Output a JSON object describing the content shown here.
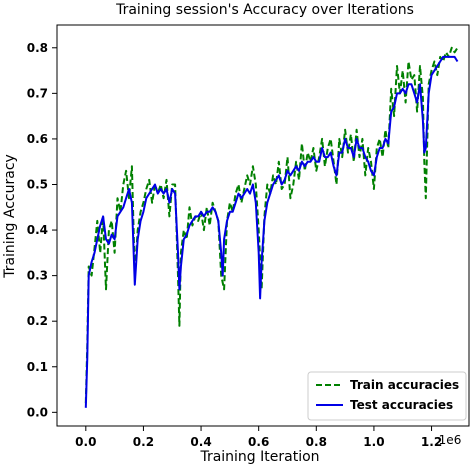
{
  "chart_data": {
    "type": "line",
    "title": "Training session's Accuracy over Iterations",
    "xlabel": "Training Iteration",
    "ylabel": "Training Accuracy",
    "x_offset_label": "1e6",
    "xlim": [
      -0.1,
      1.33
    ],
    "ylim": [
      -0.03,
      0.85
    ],
    "x_ticks": [
      0.0,
      0.2,
      0.4,
      0.6,
      0.8,
      1.0,
      1.2
    ],
    "x_tick_labels": [
      "0.0",
      "0.2",
      "0.4",
      "0.6",
      "0.8",
      "1.0",
      "1.2"
    ],
    "y_ticks": [
      0.0,
      0.1,
      0.2,
      0.3,
      0.4,
      0.5,
      0.6,
      0.7,
      0.8
    ],
    "y_tick_labels": [
      "0.0",
      "0.1",
      "0.2",
      "0.3",
      "0.4",
      "0.5",
      "0.6",
      "0.7",
      "0.8"
    ],
    "grid": false,
    "legend_position": "lower-right",
    "series": [
      {
        "name": "Train accuracies",
        "color": "#008000",
        "style": "dashed",
        "points": [
          [
            0.0,
            0.02
          ],
          [
            0.005,
            0.15
          ],
          [
            0.01,
            0.32
          ],
          [
            0.02,
            0.3
          ],
          [
            0.03,
            0.36
          ],
          [
            0.04,
            0.42
          ],
          [
            0.05,
            0.35
          ],
          [
            0.06,
            0.43
          ],
          [
            0.07,
            0.27
          ],
          [
            0.08,
            0.4
          ],
          [
            0.09,
            0.42
          ],
          [
            0.1,
            0.35
          ],
          [
            0.11,
            0.47
          ],
          [
            0.12,
            0.44
          ],
          [
            0.13,
            0.5
          ],
          [
            0.14,
            0.53
          ],
          [
            0.15,
            0.47
          ],
          [
            0.16,
            0.54
          ],
          [
            0.17,
            0.3
          ],
          [
            0.18,
            0.4
          ],
          [
            0.19,
            0.44
          ],
          [
            0.2,
            0.46
          ],
          [
            0.21,
            0.49
          ],
          [
            0.22,
            0.51
          ],
          [
            0.23,
            0.46
          ],
          [
            0.24,
            0.5
          ],
          [
            0.25,
            0.48
          ],
          [
            0.26,
            0.5
          ],
          [
            0.27,
            0.47
          ],
          [
            0.28,
            0.51
          ],
          [
            0.29,
            0.43
          ],
          [
            0.3,
            0.5
          ],
          [
            0.31,
            0.5
          ],
          [
            0.32,
            0.3
          ],
          [
            0.325,
            0.19
          ],
          [
            0.33,
            0.35
          ],
          [
            0.34,
            0.4
          ],
          [
            0.35,
            0.38
          ],
          [
            0.36,
            0.45
          ],
          [
            0.37,
            0.41
          ],
          [
            0.38,
            0.43
          ],
          [
            0.39,
            0.42
          ],
          [
            0.4,
            0.44
          ],
          [
            0.41,
            0.4
          ],
          [
            0.42,
            0.45
          ],
          [
            0.43,
            0.41
          ],
          [
            0.44,
            0.46
          ],
          [
            0.45,
            0.44
          ],
          [
            0.46,
            0.42
          ],
          [
            0.47,
            0.3
          ],
          [
            0.48,
            0.27
          ],
          [
            0.49,
            0.42
          ],
          [
            0.5,
            0.46
          ],
          [
            0.51,
            0.44
          ],
          [
            0.52,
            0.48
          ],
          [
            0.53,
            0.5
          ],
          [
            0.54,
            0.46
          ],
          [
            0.55,
            0.49
          ],
          [
            0.56,
            0.52
          ],
          [
            0.57,
            0.5
          ],
          [
            0.58,
            0.54
          ],
          [
            0.59,
            0.5
          ],
          [
            0.6,
            0.4
          ],
          [
            0.61,
            0.27
          ],
          [
            0.62,
            0.43
          ],
          [
            0.63,
            0.5
          ],
          [
            0.64,
            0.48
          ],
          [
            0.65,
            0.52
          ],
          [
            0.66,
            0.5
          ],
          [
            0.67,
            0.55
          ],
          [
            0.68,
            0.49
          ],
          [
            0.69,
            0.5
          ],
          [
            0.7,
            0.56
          ],
          [
            0.71,
            0.47
          ],
          [
            0.72,
            0.5
          ],
          [
            0.73,
            0.55
          ],
          [
            0.74,
            0.51
          ],
          [
            0.75,
            0.59
          ],
          [
            0.76,
            0.53
          ],
          [
            0.77,
            0.57
          ],
          [
            0.78,
            0.55
          ],
          [
            0.79,
            0.58
          ],
          [
            0.8,
            0.53
          ],
          [
            0.81,
            0.56
          ],
          [
            0.82,
            0.6
          ],
          [
            0.83,
            0.54
          ],
          [
            0.84,
            0.58
          ],
          [
            0.85,
            0.6
          ],
          [
            0.86,
            0.55
          ],
          [
            0.87,
            0.5
          ],
          [
            0.88,
            0.6
          ],
          [
            0.89,
            0.56
          ],
          [
            0.9,
            0.62
          ],
          [
            0.91,
            0.57
          ],
          [
            0.92,
            0.61
          ],
          [
            0.93,
            0.55
          ],
          [
            0.94,
            0.62
          ],
          [
            0.95,
            0.56
          ],
          [
            0.96,
            0.6
          ],
          [
            0.97,
            0.52
          ],
          [
            0.98,
            0.58
          ],
          [
            0.99,
            0.55
          ],
          [
            1.0,
            0.49
          ],
          [
            1.01,
            0.58
          ],
          [
            1.02,
            0.6
          ],
          [
            1.03,
            0.56
          ],
          [
            1.04,
            0.62
          ],
          [
            1.05,
            0.58
          ],
          [
            1.06,
            0.71
          ],
          [
            1.07,
            0.65
          ],
          [
            1.08,
            0.76
          ],
          [
            1.09,
            0.7
          ],
          [
            1.1,
            0.75
          ],
          [
            1.11,
            0.68
          ],
          [
            1.12,
            0.77
          ],
          [
            1.13,
            0.73
          ],
          [
            1.14,
            0.74
          ],
          [
            1.15,
            0.66
          ],
          [
            1.16,
            0.76
          ],
          [
            1.17,
            0.69
          ],
          [
            1.175,
            0.55
          ],
          [
            1.18,
            0.47
          ],
          [
            1.19,
            0.72
          ],
          [
            1.2,
            0.75
          ],
          [
            1.21,
            0.77
          ],
          [
            1.22,
            0.74
          ],
          [
            1.23,
            0.78
          ],
          [
            1.24,
            0.77
          ],
          [
            1.25,
            0.79
          ],
          [
            1.26,
            0.78
          ],
          [
            1.27,
            0.8
          ],
          [
            1.28,
            0.79
          ],
          [
            1.29,
            0.8
          ]
        ]
      },
      {
        "name": "Test accuracies",
        "color": "#0000e6",
        "style": "solid",
        "points": [
          [
            0.0,
            0.01
          ],
          [
            0.005,
            0.12
          ],
          [
            0.01,
            0.3
          ],
          [
            0.02,
            0.33
          ],
          [
            0.03,
            0.35
          ],
          [
            0.04,
            0.38
          ],
          [
            0.05,
            0.41
          ],
          [
            0.06,
            0.43
          ],
          [
            0.07,
            0.38
          ],
          [
            0.08,
            0.37
          ],
          [
            0.09,
            0.39
          ],
          [
            0.1,
            0.38
          ],
          [
            0.11,
            0.43
          ],
          [
            0.12,
            0.44
          ],
          [
            0.13,
            0.45
          ],
          [
            0.14,
            0.47
          ],
          [
            0.15,
            0.49
          ],
          [
            0.16,
            0.46
          ],
          [
            0.17,
            0.28
          ],
          [
            0.18,
            0.38
          ],
          [
            0.19,
            0.42
          ],
          [
            0.2,
            0.44
          ],
          [
            0.21,
            0.47
          ],
          [
            0.22,
            0.48
          ],
          [
            0.23,
            0.49
          ],
          [
            0.24,
            0.5
          ],
          [
            0.25,
            0.48
          ],
          [
            0.26,
            0.49
          ],
          [
            0.27,
            0.48
          ],
          [
            0.28,
            0.49
          ],
          [
            0.29,
            0.46
          ],
          [
            0.3,
            0.49
          ],
          [
            0.31,
            0.48
          ],
          [
            0.32,
            0.35
          ],
          [
            0.325,
            0.27
          ],
          [
            0.33,
            0.32
          ],
          [
            0.34,
            0.38
          ],
          [
            0.35,
            0.39
          ],
          [
            0.36,
            0.41
          ],
          [
            0.37,
            0.42
          ],
          [
            0.38,
            0.43
          ],
          [
            0.39,
            0.43
          ],
          [
            0.4,
            0.44
          ],
          [
            0.41,
            0.43
          ],
          [
            0.42,
            0.44
          ],
          [
            0.43,
            0.44
          ],
          [
            0.44,
            0.45
          ],
          [
            0.45,
            0.44
          ],
          [
            0.46,
            0.42
          ],
          [
            0.47,
            0.35
          ],
          [
            0.475,
            0.3
          ],
          [
            0.48,
            0.38
          ],
          [
            0.49,
            0.42
          ],
          [
            0.5,
            0.44
          ],
          [
            0.51,
            0.44
          ],
          [
            0.52,
            0.46
          ],
          [
            0.53,
            0.48
          ],
          [
            0.54,
            0.47
          ],
          [
            0.55,
            0.48
          ],
          [
            0.56,
            0.49
          ],
          [
            0.57,
            0.48
          ],
          [
            0.58,
            0.5
          ],
          [
            0.59,
            0.46
          ],
          [
            0.6,
            0.35
          ],
          [
            0.605,
            0.25
          ],
          [
            0.61,
            0.33
          ],
          [
            0.62,
            0.42
          ],
          [
            0.63,
            0.46
          ],
          [
            0.64,
            0.48
          ],
          [
            0.65,
            0.5
          ],
          [
            0.66,
            0.51
          ],
          [
            0.67,
            0.52
          ],
          [
            0.68,
            0.5
          ],
          [
            0.69,
            0.51
          ],
          [
            0.7,
            0.53
          ],
          [
            0.71,
            0.52
          ],
          [
            0.72,
            0.53
          ],
          [
            0.73,
            0.54
          ],
          [
            0.74,
            0.53
          ],
          [
            0.75,
            0.55
          ],
          [
            0.76,
            0.54
          ],
          [
            0.77,
            0.55
          ],
          [
            0.78,
            0.55
          ],
          [
            0.79,
            0.56
          ],
          [
            0.8,
            0.55
          ],
          [
            0.81,
            0.55
          ],
          [
            0.82,
            0.58
          ],
          [
            0.83,
            0.56
          ],
          [
            0.84,
            0.56
          ],
          [
            0.85,
            0.57
          ],
          [
            0.86,
            0.54
          ],
          [
            0.87,
            0.52
          ],
          [
            0.88,
            0.57
          ],
          [
            0.89,
            0.57
          ],
          [
            0.9,
            0.6
          ],
          [
            0.91,
            0.58
          ],
          [
            0.92,
            0.58
          ],
          [
            0.93,
            0.56
          ],
          [
            0.94,
            0.6
          ],
          [
            0.95,
            0.58
          ],
          [
            0.96,
            0.58
          ],
          [
            0.97,
            0.56
          ],
          [
            0.98,
            0.55
          ],
          [
            0.99,
            0.53
          ],
          [
            1.0,
            0.52
          ],
          [
            1.01,
            0.56
          ],
          [
            1.02,
            0.58
          ],
          [
            1.03,
            0.58
          ],
          [
            1.04,
            0.6
          ],
          [
            1.05,
            0.59
          ],
          [
            1.06,
            0.66
          ],
          [
            1.07,
            0.67
          ],
          [
            1.08,
            0.7
          ],
          [
            1.09,
            0.7
          ],
          [
            1.1,
            0.71
          ],
          [
            1.11,
            0.7
          ],
          [
            1.12,
            0.72
          ],
          [
            1.13,
            0.72
          ],
          [
            1.14,
            0.7
          ],
          [
            1.15,
            0.68
          ],
          [
            1.16,
            0.72
          ],
          [
            1.17,
            0.64
          ],
          [
            1.175,
            0.57
          ],
          [
            1.18,
            0.58
          ],
          [
            1.19,
            0.7
          ],
          [
            1.2,
            0.74
          ],
          [
            1.21,
            0.75
          ],
          [
            1.22,
            0.76
          ],
          [
            1.23,
            0.77
          ],
          [
            1.24,
            0.78
          ],
          [
            1.25,
            0.78
          ],
          [
            1.26,
            0.78
          ],
          [
            1.27,
            0.78
          ],
          [
            1.28,
            0.78
          ],
          [
            1.29,
            0.77
          ]
        ]
      }
    ]
  }
}
